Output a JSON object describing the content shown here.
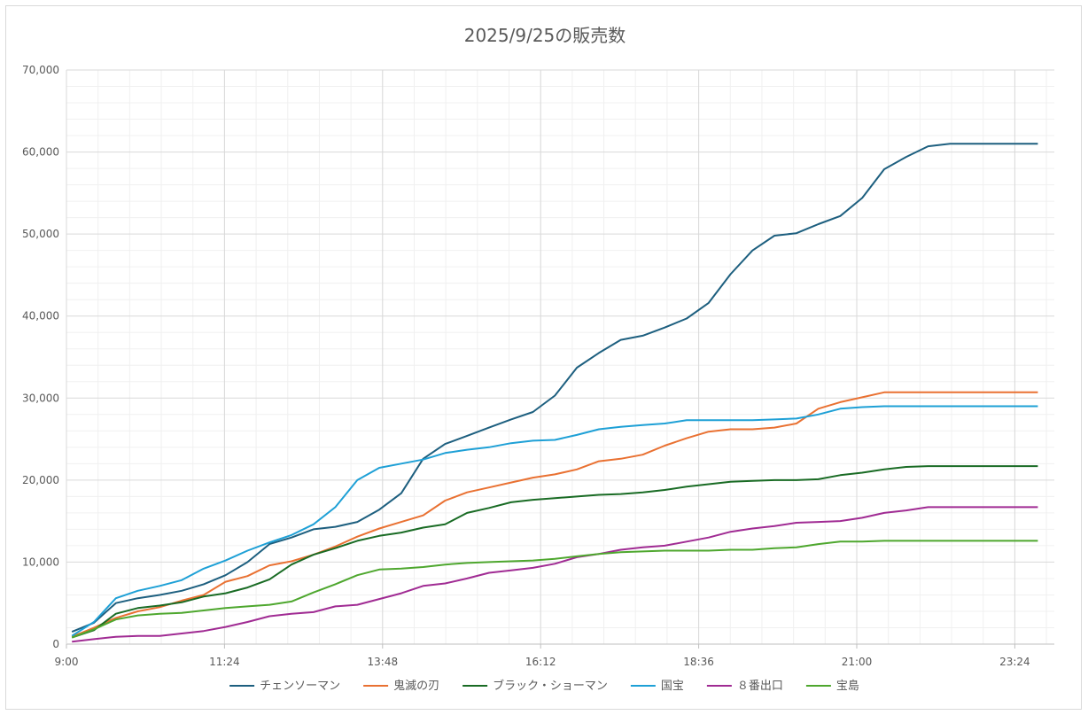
{
  "chart_data": {
    "type": "line",
    "title": "2025/9/25の販売数",
    "xlabel": "",
    "ylabel": "",
    "ylim": [
      0,
      70000
    ],
    "yticks": [
      0,
      10000,
      20000,
      30000,
      40000,
      50000,
      60000,
      70000
    ],
    "ytick_labels": [
      "0",
      "10,000",
      "20,000",
      "30,000",
      "40,000",
      "50,000",
      "60,000",
      "70,000"
    ],
    "xlim_minutes": [
      540,
      1440
    ],
    "xtick_labels": [
      "9:00",
      "11:24",
      "13:48",
      "16:12",
      "18:36",
      "21:00",
      "23:24"
    ],
    "xticks_minutes": [
      540,
      684,
      828,
      972,
      1116,
      1260,
      1404
    ],
    "minor_grid": true,
    "legend_position": "bottom",
    "x_times": [
      "9:05",
      "9:25",
      "9:45",
      "10:05",
      "10:25",
      "10:45",
      "11:05",
      "11:25",
      "11:45",
      "12:05",
      "12:25",
      "12:45",
      "13:05",
      "13:25",
      "13:45",
      "14:05",
      "14:25",
      "14:45",
      "15:05",
      "15:25",
      "15:45",
      "16:05",
      "16:25",
      "16:45",
      "17:05",
      "17:25",
      "17:45",
      "18:05",
      "18:25",
      "18:45",
      "19:05",
      "19:25",
      "19:45",
      "20:05",
      "20:25",
      "20:45",
      "21:05",
      "21:25",
      "21:45",
      "22:05",
      "22:25",
      "22:45",
      "23:05",
      "23:25",
      "23:45"
    ],
    "series": [
      {
        "name": "チェンソーマン",
        "color": "#1d5f7f",
        "values": [
          1500,
          2600,
          5000,
          5600,
          6000,
          6500,
          7300,
          8400,
          10000,
          12200,
          13000,
          14000,
          14300,
          14900,
          16400,
          18400,
          22600,
          24400,
          25400,
          26400,
          27400,
          28300,
          30300,
          33700,
          35500,
          37100,
          37600,
          38600,
          39700,
          41600,
          45100,
          48000,
          49800,
          50100,
          51200,
          52200,
          54400,
          57900,
          59400,
          60700,
          61000,
          61000,
          61000,
          61000,
          61000
        ]
      },
      {
        "name": "鬼滅の刃",
        "color": "#e97132",
        "values": [
          900,
          2000,
          3200,
          4000,
          4500,
          5300,
          6000,
          7600,
          8300,
          9600,
          10100,
          10900,
          11900,
          13100,
          14100,
          14900,
          15700,
          17500,
          18500,
          19100,
          19700,
          20300,
          20700,
          21300,
          22300,
          22600,
          23100,
          24200,
          25100,
          25900,
          26200,
          26200,
          26400,
          26900,
          28700,
          29500,
          30100,
          30700,
          30700,
          30700,
          30700,
          30700,
          30700,
          30700,
          30700
        ]
      },
      {
        "name": "ブラック・ショーマン",
        "color": "#196b24",
        "values": [
          800,
          1700,
          3700,
          4400,
          4700,
          5100,
          5800,
          6200,
          6900,
          7900,
          9700,
          10900,
          11700,
          12600,
          13200,
          13600,
          14200,
          14600,
          16000,
          16600,
          17300,
          17600,
          17800,
          18000,
          18200,
          18300,
          18500,
          18800,
          19200,
          19500,
          19800,
          19900,
          20000,
          20000,
          20100,
          20600,
          20900,
          21300,
          21600,
          21700,
          21700,
          21700,
          21700,
          21700,
          21700
        ]
      },
      {
        "name": "国宝",
        "color": "#1ea0d6",
        "values": [
          1000,
          2700,
          5600,
          6500,
          7100,
          7800,
          9200,
          10200,
          11400,
          12400,
          13300,
          14600,
          16700,
          20000,
          21500,
          22000,
          22500,
          23300,
          23700,
          24000,
          24500,
          24800,
          24900,
          25500,
          26200,
          26500,
          26700,
          26900,
          27300,
          27300,
          27300,
          27300,
          27400,
          27500,
          28000,
          28700,
          28900,
          29000,
          29000,
          29000,
          29000,
          29000,
          29000,
          29000,
          29000
        ]
      },
      {
        "name": "８番出口",
        "color": "#a02b93",
        "values": [
          300,
          600,
          900,
          1000,
          1000,
          1300,
          1600,
          2100,
          2700,
          3400,
          3700,
          3900,
          4600,
          4800,
          5500,
          6200,
          7100,
          7400,
          8000,
          8700,
          9000,
          9300,
          9800,
          10600,
          11000,
          11500,
          11800,
          12000,
          12500,
          13000,
          13700,
          14100,
          14400,
          14800,
          14900,
          15000,
          15400,
          16000,
          16300,
          16700,
          16700,
          16700,
          16700,
          16700,
          16700
        ]
      },
      {
        "name": "宝島",
        "color": "#4ea72e",
        "values": [
          800,
          1800,
          3000,
          3500,
          3700,
          3800,
          4100,
          4400,
          4600,
          4800,
          5200,
          6300,
          7300,
          8400,
          9100,
          9200,
          9400,
          9700,
          9900,
          10000,
          10100,
          10200,
          10400,
          10700,
          11000,
          11200,
          11300,
          11400,
          11400,
          11400,
          11500,
          11500,
          11700,
          11800,
          12200,
          12500,
          12500,
          12600,
          12600,
          12600,
          12600,
          12600,
          12600,
          12600,
          12600
        ]
      }
    ]
  }
}
